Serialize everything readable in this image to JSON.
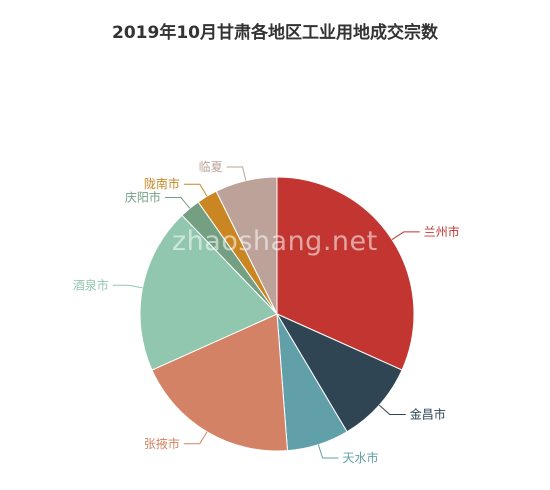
{
  "chart_data": {
    "type": "pie",
    "title": "2019年10月甘肃各地区工业用地成交宗数",
    "labels": [
      "兰州市",
      "金昌市",
      "天水市",
      "张掖市",
      "酒泉市",
      "庆阳市",
      "陇南市",
      "临夏"
    ],
    "values": [
      13,
      4,
      3,
      8,
      8,
      1,
      1,
      3
    ],
    "colors": [
      "#c23531",
      "#2f4554",
      "#61a0a8",
      "#d48265",
      "#91c7ae",
      "#749f83",
      "#ca8622",
      "#bda29a"
    ]
  },
  "watermark": "zhaoshang.net"
}
